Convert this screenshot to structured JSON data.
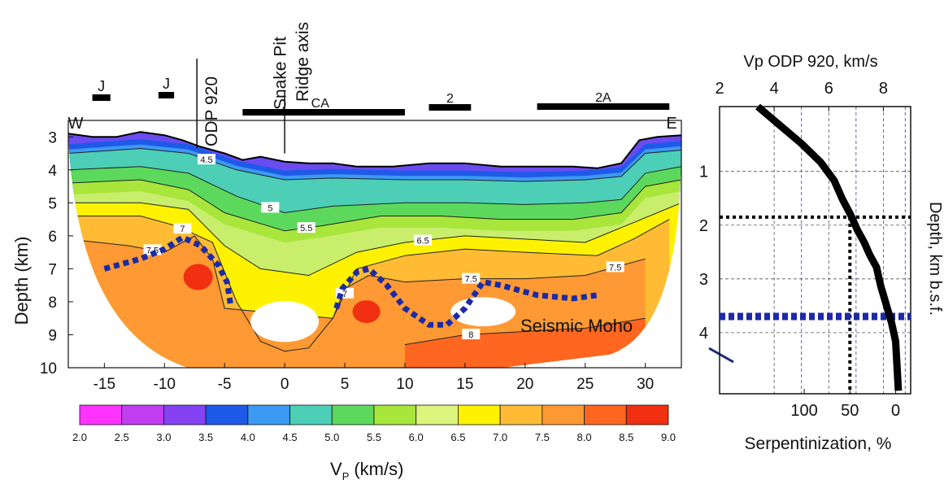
{
  "chart_data": [
    {
      "type": "heatmap",
      "title": "",
      "xlabel": "",
      "ylabel": "Depth (km)",
      "xlim": [
        -18,
        33
      ],
      "ylim": [
        2.5,
        10
      ],
      "x_ticks": [
        "-15",
        "-10",
        "-5",
        "0",
        "5",
        "10",
        "15",
        "20",
        "25",
        "30"
      ],
      "x_tick_values": [
        -15,
        -10,
        -5,
        0,
        5,
        10,
        15,
        20,
        25,
        30
      ],
      "y_ticks": [
        "3",
        "4",
        "5",
        "6",
        "7",
        "8",
        "9",
        "10"
      ],
      "y_tick_values": [
        3,
        4,
        5,
        6,
        7,
        8,
        9,
        10
      ],
      "direction_labels": {
        "west": "W",
        "east": "E"
      },
      "surface_features": [
        {
          "label": "ODP 920",
          "x": -7.3
        },
        {
          "label": "Snake Pit",
          "x": -1.0
        },
        {
          "label": "Ridge axis",
          "x": 0.0
        }
      ],
      "magnetic_anomalies": [
        {
          "label": "J",
          "start": -16.0,
          "end": -14.5
        },
        {
          "label": "J",
          "start": -10.5,
          "end": -9.2
        },
        {
          "label": "CA",
          "start": -3.5,
          "end": 10.0
        },
        {
          "label": "2",
          "start": 12.0,
          "end": 15.5
        },
        {
          "label": "2A",
          "start": 21.0,
          "end": 32.0
        }
      ],
      "seafloor_depth": {
        "x": [
          -18,
          -16,
          -14,
          -12,
          -10,
          -8.5,
          -7,
          -5,
          -3.5,
          -2,
          0,
          2,
          4,
          6,
          9,
          12,
          15,
          18,
          21,
          24,
          26,
          28,
          29.5,
          31,
          33
        ],
        "z": [
          2.9,
          3.0,
          3.0,
          2.85,
          2.95,
          3.1,
          3.3,
          3.5,
          3.7,
          3.6,
          3.75,
          3.8,
          3.8,
          3.9,
          3.9,
          3.8,
          3.8,
          3.9,
          3.9,
          3.9,
          3.95,
          3.8,
          3.1,
          3.0,
          2.95
        ]
      },
      "contours": [
        {
          "value": "4.5",
          "x": [
            -18,
            -12,
            -8,
            -4,
            0,
            4,
            10,
            15,
            20,
            25,
            28,
            30,
            33
          ],
          "z": [
            3.5,
            3.35,
            3.5,
            4.0,
            4.3,
            4.25,
            4.3,
            4.3,
            4.35,
            4.3,
            4.2,
            3.5,
            3.4
          ]
        },
        {
          "value": "5",
          "x": [
            -18,
            -12,
            -8,
            -4,
            0,
            4,
            10,
            15,
            20,
            25,
            28,
            30,
            33
          ],
          "z": [
            4.0,
            3.9,
            4.1,
            4.8,
            5.3,
            5.1,
            5.0,
            5.0,
            5.05,
            5.0,
            4.9,
            4.1,
            3.9
          ]
        },
        {
          "value": "5.5",
          "x": [
            -18,
            -12,
            -8,
            -5,
            0,
            3,
            8,
            13,
            18,
            24,
            28,
            30,
            33
          ],
          "z": [
            4.4,
            4.3,
            4.6,
            5.3,
            5.85,
            5.7,
            5.4,
            5.4,
            5.5,
            5.5,
            5.3,
            4.5,
            4.3
          ]
        },
        {
          "value": "6.5",
          "x": [
            -18,
            -12,
            -8,
            -5,
            -2,
            2,
            6,
            10,
            15,
            20,
            25,
            29,
            33
          ],
          "z": [
            5.0,
            5.0,
            5.2,
            6.3,
            7.0,
            7.2,
            6.5,
            6.2,
            6.0,
            6.1,
            6.2,
            5.6,
            5.0
          ]
        },
        {
          "value": "7",
          "x": [
            -18,
            -12,
            -9,
            -6,
            -4,
            -2,
            0,
            2,
            4,
            6,
            10,
            15,
            20,
            26,
            29,
            32
          ],
          "z": [
            5.4,
            5.4,
            5.7,
            6.2,
            8.0,
            9.2,
            9.5,
            9.4,
            8.5,
            7.0,
            6.6,
            6.4,
            6.5,
            6.6,
            6.1,
            5.5
          ]
        },
        {
          "value": "7.5",
          "x": [
            -18,
            -13,
            -10,
            -7.5,
            -6,
            -5,
            4,
            5,
            7,
            10,
            15,
            20,
            25,
            30
          ],
          "z": [
            6.1,
            6.3,
            6.5,
            6.0,
            6.7,
            8.2,
            8.5,
            7.6,
            7.2,
            7.4,
            7.3,
            7.3,
            7.2,
            6.7
          ]
        },
        {
          "value": "8",
          "x": [
            10,
            15,
            20,
            25,
            30
          ],
          "z": [
            9.3,
            9.0,
            8.9,
            8.8,
            8.5
          ]
        }
      ],
      "white_gaps": [
        {
          "x_center": 0.0,
          "z_center": 8.6
        },
        {
          "x_center": 16.5,
          "z_center": 8.3
        }
      ],
      "moho": {
        "label": "Seismic Moho",
        "x": [
          -15,
          -12,
          -10,
          -8.5,
          -7,
          -5.5,
          -4.8,
          -4.5,
          4.3,
          4.8,
          6,
          7,
          8.5,
          10,
          12,
          13.5,
          15,
          16.5,
          18,
          21,
          24,
          26
        ],
        "z": [
          7.0,
          6.7,
          6.4,
          6.05,
          6.3,
          6.9,
          7.4,
          8.1,
          8.2,
          7.6,
          7.1,
          7.0,
          7.5,
          8.2,
          8.7,
          8.7,
          8.2,
          7.4,
          7.5,
          7.8,
          7.9,
          7.8
        ]
      },
      "colorbar": {
        "title": "V",
        "title_subscript": "P",
        "unit": "(km/s)",
        "ticks": [
          "2.0",
          "2.5",
          "3.0",
          "3.5",
          "4.0",
          "4.5",
          "5.0",
          "5.5",
          "6.0",
          "6.5",
          "7.0",
          "7.5",
          "8.0",
          "8.5",
          "9.0"
        ],
        "colors": [
          "#ff33ff",
          "#c03ef0",
          "#8442f2",
          "#1e5ae8",
          "#3c9af2",
          "#4ccfb6",
          "#5cd95c",
          "#a8e63c",
          "#dcf57c",
          "#fff200",
          "#ffbb33",
          "#ff9933",
          "#ff6620",
          "#f03010"
        ]
      }
    },
    {
      "type": "line",
      "title": "Vp ODP 920, km/s",
      "xlabel": "Serpentinization, %",
      "ylabel": "Depth, km b.s.f.",
      "top_axis_label": "Vp ODP 920, km/s",
      "top_ticks": [
        "2",
        "4",
        "6",
        "8"
      ],
      "top_tick_values": [
        2,
        4,
        6,
        8
      ],
      "bottom_ticks": [
        "100",
        "50",
        "0"
      ],
      "bottom_tick_values": [
        100,
        50,
        0
      ],
      "y_ticks": [
        "1",
        "2",
        "3",
        "4"
      ],
      "y_tick_values": [
        1,
        2,
        3,
        4
      ],
      "xlim": [
        2,
        9
      ],
      "ylim": [
        0,
        4.65
      ],
      "series": [
        {
          "x": [
            3.4,
            4.2,
            5.0,
            5.7,
            6.2,
            6.5,
            6.8,
            7.05,
            7.3,
            7.5,
            7.75,
            7.9,
            8.1,
            8.3,
            8.45,
            8.5,
            8.55
          ],
          "y": [
            0.0,
            0.3,
            0.6,
            0.9,
            1.2,
            1.5,
            1.75,
            2.0,
            2.2,
            2.4,
            2.6,
            2.9,
            3.2,
            3.5,
            3.8,
            4.2,
            4.6
          ]
        }
      ],
      "reference_lines": [
        {
          "depth": 1.85,
          "serpentinization": 50,
          "style": "black-dotted"
        },
        {
          "depth": 3.7,
          "style": "blue-dashed",
          "label": "Seismic Moho"
        }
      ]
    }
  ]
}
